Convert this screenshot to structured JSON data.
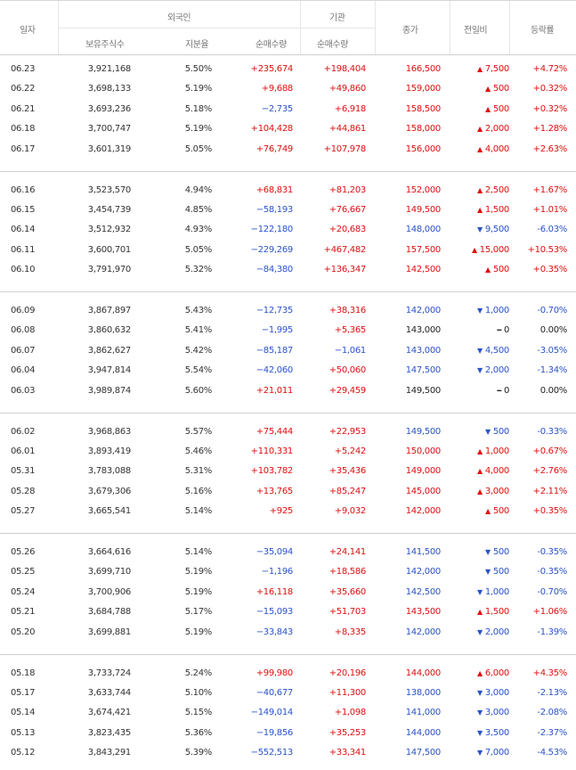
{
  "header": {
    "date": "일자",
    "foreign": "외국인",
    "holdings": "보유주식수",
    "ratio": "지분율",
    "foreign_net": "순매수량",
    "institution": "기관",
    "inst_net": "순매수량",
    "close": "종가",
    "change": "전일비",
    "rate": "등락률"
  },
  "colors": {
    "up": "#e00e0e",
    "down": "#2a52c9",
    "flat": "#222222"
  },
  "groups": [
    {
      "rows": [
        {
          "date": "06.23",
          "holdings": "3,921,168",
          "ratio": "5.50%",
          "fnet": "+235,674",
          "inet": "+198,404",
          "close": "166,500",
          "dir": "up",
          "chg": "7,500",
          "rate": "+4.72%"
        },
        {
          "date": "06.22",
          "holdings": "3,698,133",
          "ratio": "5.19%",
          "fnet": "+9,688",
          "inet": "+49,860",
          "close": "159,000",
          "dir": "up",
          "chg": "500",
          "rate": "+0.32%"
        },
        {
          "date": "06.21",
          "holdings": "3,693,236",
          "ratio": "5.18%",
          "fnet": "−2,735",
          "inet": "+6,918",
          "close": "158,500",
          "dir": "up",
          "chg": "500",
          "rate": "+0.32%"
        },
        {
          "date": "06.18",
          "holdings": "3,700,747",
          "ratio": "5.19%",
          "fnet": "+104,428",
          "inet": "+44,861",
          "close": "158,000",
          "dir": "up",
          "chg": "2,000",
          "rate": "+1.28%"
        },
        {
          "date": "06.17",
          "holdings": "3,601,319",
          "ratio": "5.05%",
          "fnet": "+76,749",
          "inet": "+107,978",
          "close": "156,000",
          "dir": "up",
          "chg": "4,000",
          "rate": "+2.63%"
        }
      ]
    },
    {
      "rows": [
        {
          "date": "06.16",
          "holdings": "3,523,570",
          "ratio": "4.94%",
          "fnet": "+68,831",
          "inet": "+81,203",
          "close": "152,000",
          "dir": "up",
          "chg": "2,500",
          "rate": "+1.67%"
        },
        {
          "date": "06.15",
          "holdings": "3,454,739",
          "ratio": "4.85%",
          "fnet": "−58,193",
          "inet": "+76,667",
          "close": "149,500",
          "dir": "up",
          "chg": "1,500",
          "rate": "+1.01%"
        },
        {
          "date": "06.14",
          "holdings": "3,512,932",
          "ratio": "4.93%",
          "fnet": "−122,180",
          "inet": "+20,683",
          "close": "148,000",
          "dir": "down",
          "chg": "9,500",
          "rate": "-6.03%"
        },
        {
          "date": "06.11",
          "holdings": "3,600,701",
          "ratio": "5.05%",
          "fnet": "−229,269",
          "inet": "+467,482",
          "close": "157,500",
          "dir": "up",
          "chg": "15,000",
          "rate": "+10.53%"
        },
        {
          "date": "06.10",
          "holdings": "3,791,970",
          "ratio": "5.32%",
          "fnet": "−84,380",
          "inet": "+136,347",
          "close": "142,500",
          "dir": "up",
          "chg": "500",
          "rate": "+0.35%"
        }
      ]
    },
    {
      "rows": [
        {
          "date": "06.09",
          "holdings": "3,867,897",
          "ratio": "5.43%",
          "fnet": "−12,735",
          "inet": "+38,316",
          "close": "142,000",
          "dir": "down",
          "chg": "1,000",
          "rate": "-0.70%"
        },
        {
          "date": "06.08",
          "holdings": "3,860,632",
          "ratio": "5.41%",
          "fnet": "−1,995",
          "inet": "+5,365",
          "close": "143,000",
          "dir": "flat",
          "chg": "0",
          "rate": "0.00%"
        },
        {
          "date": "06.07",
          "holdings": "3,862,627",
          "ratio": "5.42%",
          "fnet": "−85,187",
          "inet": "−1,061",
          "close": "143,000",
          "dir": "down",
          "chg": "4,500",
          "rate": "-3.05%"
        },
        {
          "date": "06.04",
          "holdings": "3,947,814",
          "ratio": "5.54%",
          "fnet": "−42,060",
          "inet": "+50,060",
          "close": "147,500",
          "dir": "down",
          "chg": "2,000",
          "rate": "-1.34%"
        },
        {
          "date": "06.03",
          "holdings": "3,989,874",
          "ratio": "5.60%",
          "fnet": "+21,011",
          "inet": "+29,459",
          "close": "149,500",
          "dir": "flat",
          "chg": "0",
          "rate": "0.00%"
        }
      ]
    },
    {
      "rows": [
        {
          "date": "06.02",
          "holdings": "3,968,863",
          "ratio": "5.57%",
          "fnet": "+75,444",
          "inet": "+22,953",
          "close": "149,500",
          "dir": "down",
          "chg": "500",
          "rate": "-0.33%"
        },
        {
          "date": "06.01",
          "holdings": "3,893,419",
          "ratio": "5.46%",
          "fnet": "+110,331",
          "inet": "+5,242",
          "close": "150,000",
          "dir": "up",
          "chg": "1,000",
          "rate": "+0.67%"
        },
        {
          "date": "05.31",
          "holdings": "3,783,088",
          "ratio": "5.31%",
          "fnet": "+103,782",
          "inet": "+35,436",
          "close": "149,000",
          "dir": "up",
          "chg": "4,000",
          "rate": "+2.76%"
        },
        {
          "date": "05.28",
          "holdings": "3,679,306",
          "ratio": "5.16%",
          "fnet": "+13,765",
          "inet": "+85,247",
          "close": "145,000",
          "dir": "up",
          "chg": "3,000",
          "rate": "+2.11%"
        },
        {
          "date": "05.27",
          "holdings": "3,665,541",
          "ratio": "5.14%",
          "fnet": "+925",
          "inet": "+9,032",
          "close": "142,000",
          "dir": "up",
          "chg": "500",
          "rate": "+0.35%"
        }
      ]
    },
    {
      "rows": [
        {
          "date": "05.26",
          "holdings": "3,664,616",
          "ratio": "5.14%",
          "fnet": "−35,094",
          "inet": "+24,141",
          "close": "141,500",
          "dir": "down",
          "chg": "500",
          "rate": "-0.35%"
        },
        {
          "date": "05.25",
          "holdings": "3,699,710",
          "ratio": "5.19%",
          "fnet": "−1,196",
          "inet": "+18,586",
          "close": "142,000",
          "dir": "down",
          "chg": "500",
          "rate": "-0.35%"
        },
        {
          "date": "05.24",
          "holdings": "3,700,906",
          "ratio": "5.19%",
          "fnet": "+16,118",
          "inet": "+35,660",
          "close": "142,500",
          "dir": "down",
          "chg": "1,000",
          "rate": "-0.70%"
        },
        {
          "date": "05.21",
          "holdings": "3,684,788",
          "ratio": "5.17%",
          "fnet": "−15,093",
          "inet": "+51,703",
          "close": "143,500",
          "dir": "up",
          "chg": "1,500",
          "rate": "+1.06%"
        },
        {
          "date": "05.20",
          "holdings": "3,699,881",
          "ratio": "5.19%",
          "fnet": "−33,843",
          "inet": "+8,335",
          "close": "142,000",
          "dir": "down",
          "chg": "2,000",
          "rate": "-1.39%"
        }
      ]
    },
    {
      "rows": [
        {
          "date": "05.18",
          "holdings": "3,733,724",
          "ratio": "5.24%",
          "fnet": "+99,980",
          "inet": "+20,196",
          "close": "144,000",
          "dir": "up",
          "chg": "6,000",
          "rate": "+4.35%"
        },
        {
          "date": "05.17",
          "holdings": "3,633,744",
          "ratio": "5.10%",
          "fnet": "−40,677",
          "inet": "+11,300",
          "close": "138,000",
          "dir": "down",
          "chg": "3,000",
          "rate": "-2.13%"
        },
        {
          "date": "05.14",
          "holdings": "3,674,421",
          "ratio": "5.15%",
          "fnet": "−149,014",
          "inet": "+1,098",
          "close": "141,000",
          "dir": "down",
          "chg": "3,000",
          "rate": "-2.08%"
        },
        {
          "date": "05.13",
          "holdings": "3,823,435",
          "ratio": "5.36%",
          "fnet": "−19,856",
          "inet": "+35,253",
          "close": "144,000",
          "dir": "down",
          "chg": "3,500",
          "rate": "-2.37%"
        },
        {
          "date": "05.12",
          "holdings": "3,843,291",
          "ratio": "5.39%",
          "fnet": "−552,513",
          "inet": "+33,341",
          "close": "147,500",
          "dir": "down",
          "chg": "7,000",
          "rate": "-4.53%"
        }
      ]
    }
  ]
}
